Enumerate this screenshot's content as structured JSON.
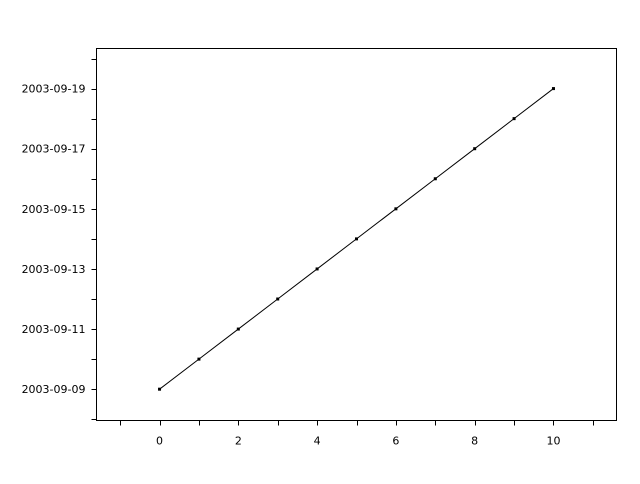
{
  "chart_data": {
    "type": "line",
    "title": "",
    "xlabel": "",
    "ylabel": "",
    "x": [
      0,
      1,
      2,
      3,
      4,
      5,
      6,
      7,
      8,
      9,
      10
    ],
    "y": [
      "2003-09-09",
      "2003-09-10",
      "2003-09-11",
      "2003-09-12",
      "2003-09-13",
      "2003-09-14",
      "2003-09-15",
      "2003-09-16",
      "2003-09-17",
      "2003-09-18",
      "2003-09-19"
    ],
    "xlim": [
      -1.6,
      11.6
    ],
    "ylim": [
      "2003-09-07 23:00",
      "2003-09-20 08:00"
    ],
    "x_ticks": [
      0,
      2,
      4,
      6,
      8,
      10
    ],
    "x_tick_labels": [
      "0",
      "2",
      "4",
      "6",
      "8",
      "10"
    ],
    "y_ticks": [
      "2003-09-09",
      "2003-09-11",
      "2003-09-13",
      "2003-09-15",
      "2003-09-17",
      "2003-09-19"
    ],
    "y_tick_labels": [
      "2003-09-09",
      "2003-09-11",
      "2003-09-13",
      "2003-09-15",
      "2003-09-17",
      "2003-09-19"
    ],
    "marker": "point",
    "line_color": "#000000",
    "grid": false,
    "legend": "none"
  }
}
